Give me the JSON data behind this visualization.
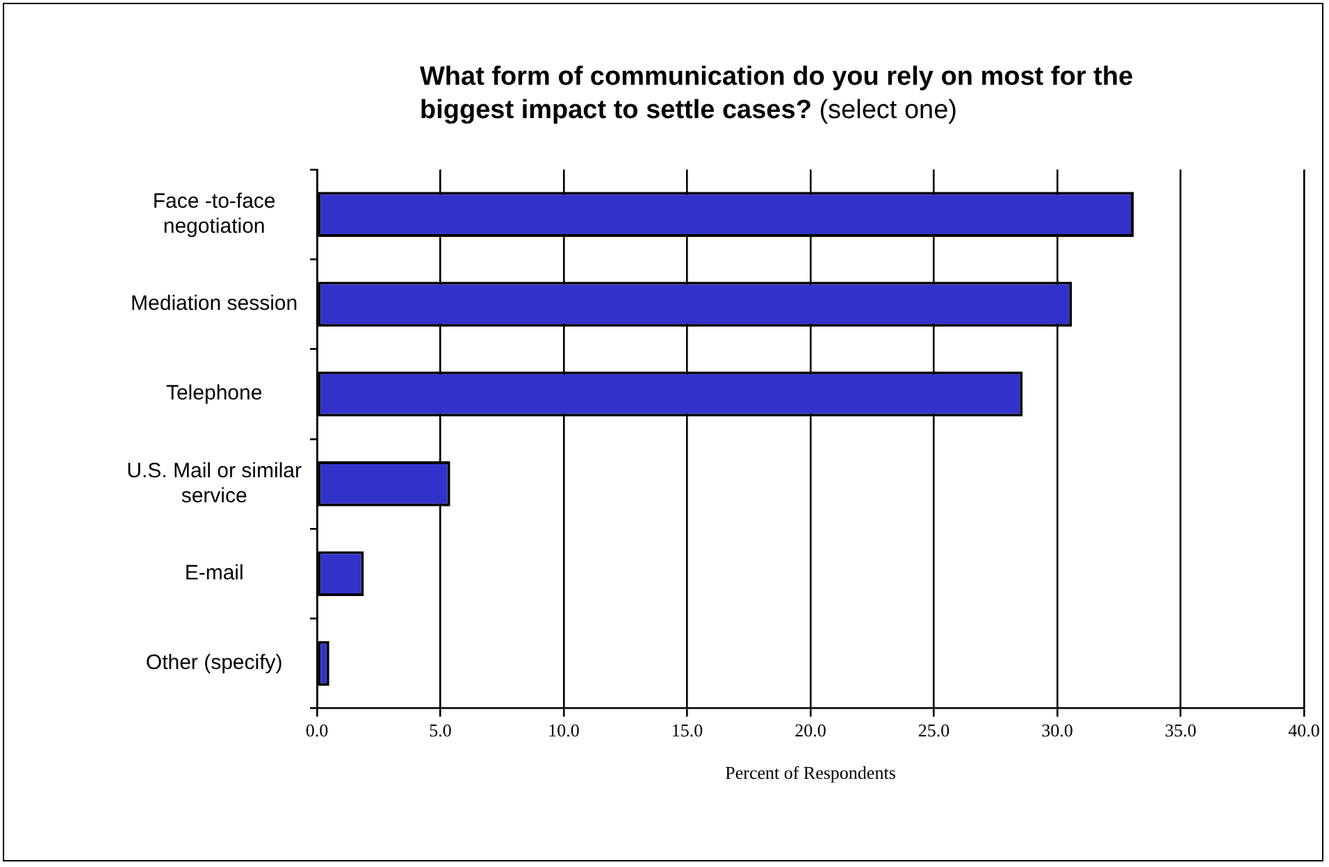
{
  "chart_data": {
    "type": "bar",
    "orientation": "horizontal",
    "title": "What form of communication do you rely on most for the biggest impact to settle cases?",
    "subtitle": "(select one)",
    "xlabel": "Percent of Respondents",
    "categories": [
      "Face -to-face negotiation",
      "Mediation session",
      "Telephone",
      "U.S. Mail or similar service",
      "E-mail",
      "Other (specify)"
    ],
    "values": [
      33.1,
      30.6,
      28.6,
      5.4,
      1.9,
      0.5
    ],
    "color": "#3333cc",
    "xlim": [
      0,
      40
    ],
    "xticks": [
      {
        "value": 0,
        "label": "0.0"
      },
      {
        "value": 5,
        "label": "5.0"
      },
      {
        "value": 10,
        "label": "10.0"
      },
      {
        "value": 15,
        "label": "15.0"
      },
      {
        "value": 20,
        "label": "20.0"
      },
      {
        "value": 25,
        "label": "25.0"
      },
      {
        "value": 30,
        "label": "30.0"
      },
      {
        "value": 35,
        "label": "35.0"
      },
      {
        "value": 40,
        "label": "40.0"
      }
    ],
    "grid": "x",
    "legend": false
  }
}
